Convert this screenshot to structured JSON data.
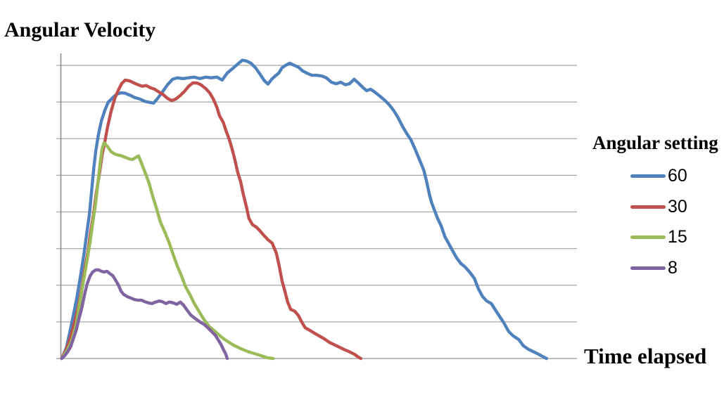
{
  "chart": {
    "title": "Angular Velocity",
    "x_axis_label": "Time elapsed",
    "legend_title": "Angular setting",
    "gridline_color": "#a6a6a6",
    "axis_color": "#8f8f8f",
    "background_color": "#ffffff"
  },
  "chart_data": {
    "type": "line",
    "title": "Angular Velocity",
    "xlabel": "Time elapsed",
    "ylabel": "",
    "legend_title": "Angular setting",
    "legend_position": "right",
    "legend_entries": [
      "60",
      "30",
      "15",
      "8"
    ],
    "grid": "horizontal gridlines only, 8 equal intervals",
    "axis_tick_labels": "none visible on either axis",
    "x_unit": "percent of x-axis width (no tick labels shown)",
    "y_unit": "gridline intervals above baseline (no tick labels shown)",
    "xlim": [
      0,
      100
    ],
    "ylim": [
      0,
      8.4
    ],
    "series": [
      {
        "name": "60",
        "color": "#4F81BD",
        "points": [
          [
            0.1,
            0
          ],
          [
            1,
            0.29
          ],
          [
            1.6,
            0.67
          ],
          [
            2.3,
            1.15
          ],
          [
            3,
            1.63
          ],
          [
            3.7,
            2.21
          ],
          [
            4.4,
            2.84
          ],
          [
            4.9,
            3.36
          ],
          [
            5.5,
            3.97
          ],
          [
            5.9,
            4.57
          ],
          [
            6.3,
            5.18
          ],
          [
            6.7,
            5.66
          ],
          [
            7.2,
            6.1
          ],
          [
            7.8,
            6.49
          ],
          [
            8.5,
            6.79
          ],
          [
            9.1,
            6.99
          ],
          [
            10,
            7.12
          ],
          [
            10.8,
            7.22
          ],
          [
            11.6,
            7.25
          ],
          [
            12.4,
            7.24
          ],
          [
            13.4,
            7.18
          ],
          [
            14.3,
            7.12
          ],
          [
            15.3,
            7.08
          ],
          [
            16.2,
            7.02
          ],
          [
            17.1,
            6.99
          ],
          [
            17.9,
            6.97
          ],
          [
            18.7,
            7.1
          ],
          [
            19.6,
            7.27
          ],
          [
            20.6,
            7.47
          ],
          [
            21.6,
            7.62
          ],
          [
            22.5,
            7.66
          ],
          [
            23.6,
            7.64
          ],
          [
            24.7,
            7.66
          ],
          [
            25.8,
            7.68
          ],
          [
            26.9,
            7.64
          ],
          [
            28,
            7.68
          ],
          [
            29.1,
            7.66
          ],
          [
            30.2,
            7.68
          ],
          [
            31.2,
            7.6
          ],
          [
            32.2,
            7.79
          ],
          [
            33.2,
            7.91
          ],
          [
            34.1,
            8.02
          ],
          [
            35.1,
            8.14
          ],
          [
            35.9,
            8.12
          ],
          [
            36.8,
            8.06
          ],
          [
            37.7,
            7.93
          ],
          [
            38.6,
            7.75
          ],
          [
            39.4,
            7.58
          ],
          [
            40.1,
            7.49
          ],
          [
            40.8,
            7.62
          ],
          [
            41.5,
            7.71
          ],
          [
            42.2,
            7.79
          ],
          [
            42.8,
            7.93
          ],
          [
            43.5,
            8
          ],
          [
            44.3,
            8.06
          ],
          [
            45.2,
            8
          ],
          [
            46,
            7.95
          ],
          [
            46.8,
            7.85
          ],
          [
            47.6,
            7.79
          ],
          [
            48.6,
            7.73
          ],
          [
            49.5,
            7.73
          ],
          [
            50.5,
            7.71
          ],
          [
            51.4,
            7.66
          ],
          [
            52.4,
            7.54
          ],
          [
            53.3,
            7.5
          ],
          [
            54.2,
            7.54
          ],
          [
            55.1,
            7.47
          ],
          [
            55.9,
            7.5
          ],
          [
            56.8,
            7.62
          ],
          [
            57.6,
            7.52
          ],
          [
            58.4,
            7.41
          ],
          [
            59.2,
            7.31
          ],
          [
            60,
            7.35
          ],
          [
            60.8,
            7.27
          ],
          [
            61.8,
            7.16
          ],
          [
            62.8,
            7.04
          ],
          [
            63.7,
            6.91
          ],
          [
            64.5,
            6.76
          ],
          [
            65.3,
            6.58
          ],
          [
            66.2,
            6.33
          ],
          [
            67,
            6.14
          ],
          [
            67.8,
            5.97
          ],
          [
            68.6,
            5.72
          ],
          [
            69.4,
            5.45
          ],
          [
            70.3,
            5.14
          ],
          [
            70.8,
            4.86
          ],
          [
            71.4,
            4.47
          ],
          [
            71.8,
            4.26
          ],
          [
            72.3,
            4.07
          ],
          [
            73,
            3.82
          ],
          [
            73.7,
            3.61
          ],
          [
            74.4,
            3.32
          ],
          [
            75,
            3.17
          ],
          [
            75.9,
            2.94
          ],
          [
            76.7,
            2.74
          ],
          [
            77.5,
            2.59
          ],
          [
            78.3,
            2.5
          ],
          [
            79.3,
            2.34
          ],
          [
            80.1,
            2.19
          ],
          [
            80.9,
            1.9
          ],
          [
            81.7,
            1.69
          ],
          [
            82.5,
            1.57
          ],
          [
            83.4,
            1.5
          ],
          [
            84.2,
            1.32
          ],
          [
            85,
            1.15
          ],
          [
            85.8,
            0.98
          ],
          [
            86.8,
            0.73
          ],
          [
            87.7,
            0.61
          ],
          [
            88.7,
            0.52
          ],
          [
            89.6,
            0.35
          ],
          [
            90.6,
            0.25
          ],
          [
            91.5,
            0.19
          ],
          [
            92.5,
            0.12
          ],
          [
            93.3,
            0.06
          ],
          [
            94.1,
            0
          ]
        ]
      },
      {
        "name": "30",
        "color": "#C0504D",
        "points": [
          [
            0.1,
            0
          ],
          [
            1,
            0.25
          ],
          [
            1.8,
            0.58
          ],
          [
            2.6,
            1
          ],
          [
            3.3,
            1.4
          ],
          [
            4,
            1.92
          ],
          [
            4.6,
            2.46
          ],
          [
            5.2,
            2.92
          ],
          [
            5.7,
            3.45
          ],
          [
            6.3,
            3.97
          ],
          [
            6.8,
            4.51
          ],
          [
            7.4,
            5.03
          ],
          [
            7.9,
            5.53
          ],
          [
            8.5,
            5.95
          ],
          [
            9,
            6.33
          ],
          [
            9.7,
            6.76
          ],
          [
            10.4,
            7.1
          ],
          [
            11.1,
            7.33
          ],
          [
            11.7,
            7.5
          ],
          [
            12.4,
            7.6
          ],
          [
            13.2,
            7.58
          ],
          [
            14.1,
            7.52
          ],
          [
            14.9,
            7.47
          ],
          [
            15.7,
            7.43
          ],
          [
            16.5,
            7.45
          ],
          [
            17.3,
            7.39
          ],
          [
            18.1,
            7.35
          ],
          [
            19,
            7.27
          ],
          [
            19.8,
            7.2
          ],
          [
            20.6,
            7.1
          ],
          [
            21.4,
            7.04
          ],
          [
            22.2,
            7.08
          ],
          [
            23.1,
            7.18
          ],
          [
            23.9,
            7.29
          ],
          [
            24.7,
            7.43
          ],
          [
            25.5,
            7.52
          ],
          [
            26.3,
            7.52
          ],
          [
            27.1,
            7.47
          ],
          [
            28,
            7.37
          ],
          [
            28.8,
            7.25
          ],
          [
            29.5,
            7.08
          ],
          [
            30.2,
            6.85
          ],
          [
            30.7,
            6.62
          ],
          [
            31.4,
            6.45
          ],
          [
            31.9,
            6.24
          ],
          [
            32.6,
            5.97
          ],
          [
            33.2,
            5.68
          ],
          [
            33.7,
            5.41
          ],
          [
            34.2,
            5.09
          ],
          [
            34.8,
            4.82
          ],
          [
            35.3,
            4.49
          ],
          [
            35.9,
            4.15
          ],
          [
            36.4,
            3.82
          ],
          [
            37.1,
            3.65
          ],
          [
            37.8,
            3.59
          ],
          [
            38.5,
            3.49
          ],
          [
            39.3,
            3.36
          ],
          [
            40.1,
            3.24
          ],
          [
            40.9,
            3.15
          ],
          [
            41.7,
            2.88
          ],
          [
            42.3,
            2.5
          ],
          [
            42.8,
            2.13
          ],
          [
            43.4,
            1.82
          ],
          [
            43.9,
            1.54
          ],
          [
            44.5,
            1.34
          ],
          [
            45.3,
            1.29
          ],
          [
            46,
            1.17
          ],
          [
            46.7,
            0.98
          ],
          [
            47.3,
            0.84
          ],
          [
            48.2,
            0.77
          ],
          [
            49.1,
            0.69
          ],
          [
            50.1,
            0.61
          ],
          [
            51,
            0.54
          ],
          [
            52,
            0.44
          ],
          [
            52.9,
            0.38
          ],
          [
            53.9,
            0.31
          ],
          [
            54.8,
            0.25
          ],
          [
            55.8,
            0.19
          ],
          [
            56.8,
            0.12
          ],
          [
            57.6,
            0.04
          ],
          [
            58.1,
            0
          ]
        ]
      },
      {
        "name": "15",
        "color": "#9BBB59",
        "points": [
          [
            0.1,
            0
          ],
          [
            1.2,
            0.23
          ],
          [
            2,
            0.48
          ],
          [
            2.9,
            0.92
          ],
          [
            3.5,
            1.44
          ],
          [
            4.2,
            2.02
          ],
          [
            4.9,
            2.59
          ],
          [
            5.6,
            3.17
          ],
          [
            6.1,
            3.69
          ],
          [
            6.7,
            4.26
          ],
          [
            7.1,
            4.76
          ],
          [
            7.5,
            5.28
          ],
          [
            7.9,
            5.7
          ],
          [
            8.3,
            5.89
          ],
          [
            9,
            5.78
          ],
          [
            9.7,
            5.64
          ],
          [
            10.4,
            5.58
          ],
          [
            11.1,
            5.55
          ],
          [
            11.7,
            5.53
          ],
          [
            12.4,
            5.49
          ],
          [
            13.1,
            5.45
          ],
          [
            13.8,
            5.43
          ],
          [
            14.5,
            5.49
          ],
          [
            15,
            5.53
          ],
          [
            15.7,
            5.28
          ],
          [
            16.4,
            5.03
          ],
          [
            17.1,
            4.76
          ],
          [
            17.7,
            4.45
          ],
          [
            18.4,
            4.13
          ],
          [
            19.2,
            3.74
          ],
          [
            20.1,
            3.45
          ],
          [
            20.9,
            3.17
          ],
          [
            21.7,
            2.84
          ],
          [
            22.5,
            2.53
          ],
          [
            23.3,
            2.26
          ],
          [
            24.1,
            1.96
          ],
          [
            25,
            1.73
          ],
          [
            25.8,
            1.5
          ],
          [
            26.7,
            1.29
          ],
          [
            27.7,
            1.06
          ],
          [
            28.8,
            0.86
          ],
          [
            29.9,
            0.73
          ],
          [
            31.1,
            0.58
          ],
          [
            32.3,
            0.46
          ],
          [
            33.6,
            0.35
          ],
          [
            34.8,
            0.27
          ],
          [
            36.2,
            0.19
          ],
          [
            37.5,
            0.13
          ],
          [
            38.7,
            0.08
          ],
          [
            40,
            0.02
          ],
          [
            41.1,
            0
          ]
        ]
      },
      {
        "name": "8",
        "color": "#8064A2",
        "points": [
          [
            0.1,
            0
          ],
          [
            0.7,
            0.08
          ],
          [
            1.2,
            0.17
          ],
          [
            1.8,
            0.31
          ],
          [
            2.3,
            0.52
          ],
          [
            2.9,
            0.77
          ],
          [
            3.4,
            1.06
          ],
          [
            4,
            1.38
          ],
          [
            4.5,
            1.73
          ],
          [
            5,
            2.03
          ],
          [
            5.6,
            2.25
          ],
          [
            6.1,
            2.36
          ],
          [
            6.7,
            2.42
          ],
          [
            7.2,
            2.42
          ],
          [
            7.8,
            2.38
          ],
          [
            8.3,
            2.36
          ],
          [
            8.9,
            2.38
          ],
          [
            9.4,
            2.32
          ],
          [
            10,
            2.26
          ],
          [
            10.5,
            2.15
          ],
          [
            11.1,
            2
          ],
          [
            11.6,
            1.84
          ],
          [
            12.1,
            1.75
          ],
          [
            12.8,
            1.69
          ],
          [
            13.5,
            1.65
          ],
          [
            14.2,
            1.61
          ],
          [
            14.9,
            1.59
          ],
          [
            15.6,
            1.59
          ],
          [
            16.2,
            1.55
          ],
          [
            16.9,
            1.52
          ],
          [
            17.6,
            1.5
          ],
          [
            18.3,
            1.54
          ],
          [
            19,
            1.57
          ],
          [
            19.6,
            1.55
          ],
          [
            20.3,
            1.5
          ],
          [
            21,
            1.54
          ],
          [
            21.7,
            1.52
          ],
          [
            22.4,
            1.48
          ],
          [
            23.1,
            1.54
          ],
          [
            23.7,
            1.46
          ],
          [
            24.4,
            1.32
          ],
          [
            25.1,
            1.19
          ],
          [
            25.8,
            1.11
          ],
          [
            26.5,
            1.04
          ],
          [
            27.1,
            0.98
          ],
          [
            27.8,
            0.92
          ],
          [
            28.5,
            0.83
          ],
          [
            29.2,
            0.73
          ],
          [
            29.9,
            0.63
          ],
          [
            30.4,
            0.52
          ],
          [
            31,
            0.38
          ],
          [
            31.5,
            0.23
          ],
          [
            31.9,
            0.12
          ],
          [
            32.2,
            0
          ]
        ]
      }
    ]
  }
}
